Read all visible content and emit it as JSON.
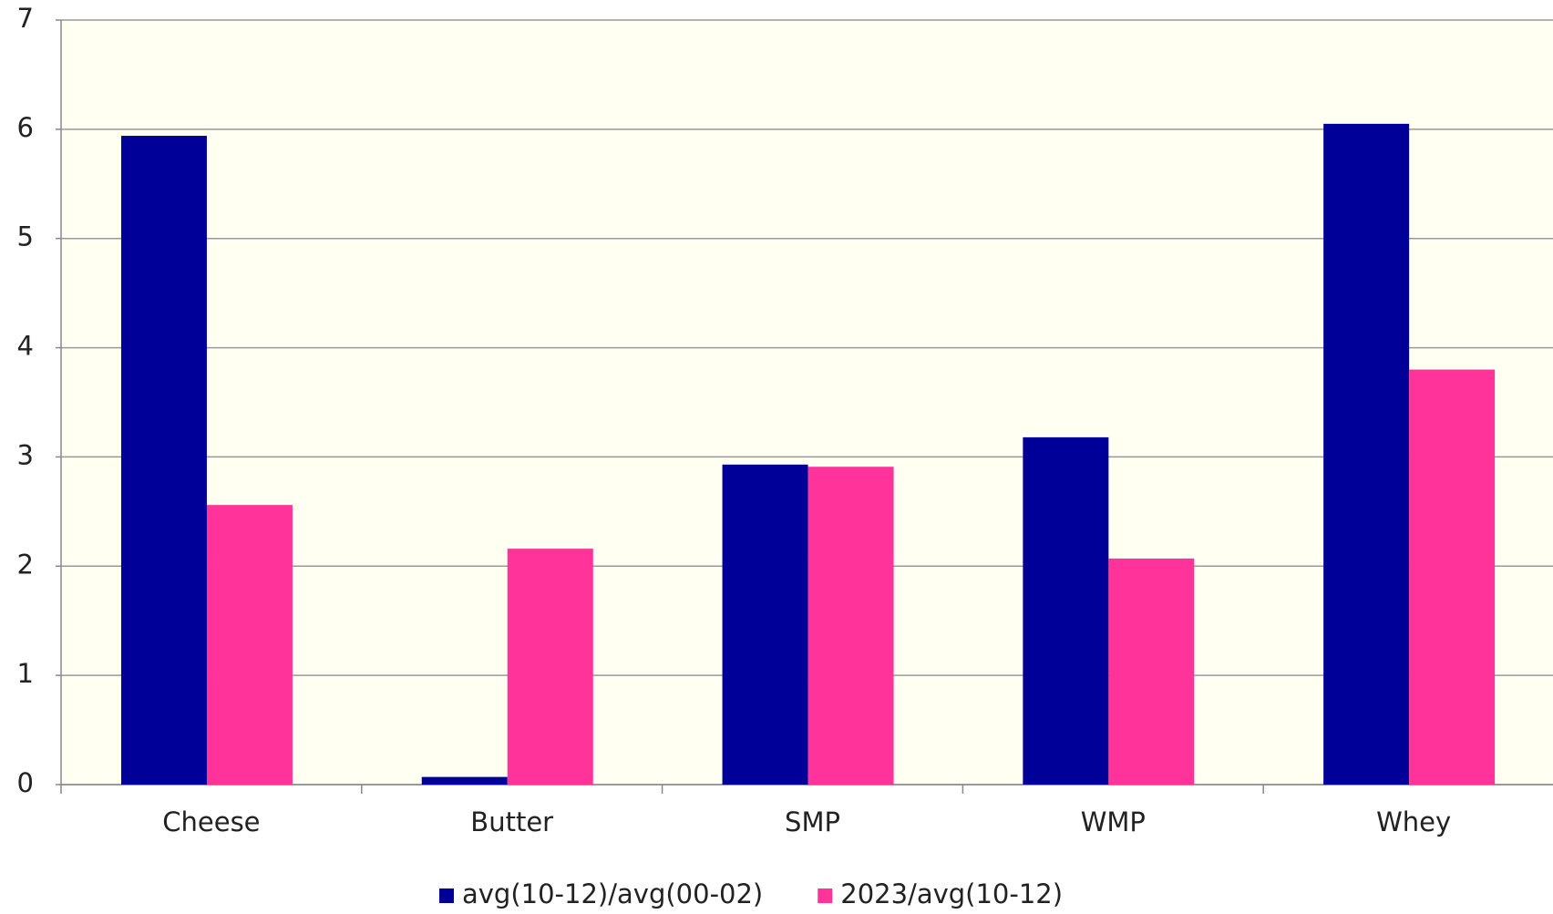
{
  "chart_data": {
    "type": "bar",
    "categories": [
      "Cheese",
      "Butter",
      "SMP",
      "WMP",
      "Whey"
    ],
    "series": [
      {
        "name": "avg(10-12)/avg(00-02)",
        "color": "#000099",
        "values": [
          5.94,
          0.07,
          2.93,
          3.18,
          6.05
        ]
      },
      {
        "name": "2023/avg(10-12)",
        "color": "#ff3399",
        "values": [
          2.56,
          2.16,
          2.91,
          2.07,
          3.8
        ]
      }
    ],
    "ylim": [
      0,
      7
    ],
    "yticks": [
      0,
      1,
      2,
      3,
      4,
      5,
      6,
      7
    ],
    "grid": true,
    "legend": "bottom"
  }
}
